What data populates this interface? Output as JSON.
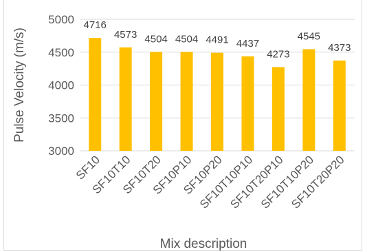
{
  "chart_data": {
    "type": "bar",
    "categories": [
      "SF10",
      "SF10T10",
      "SF10T20",
      "SF10P10",
      "SF10P20",
      "SF10T10P10",
      "SF10T20P10",
      "SF10T10P20",
      "SF10T20P20"
    ],
    "values": [
      4716,
      4573,
      4504,
      4504,
      4491,
      4437,
      4273,
      4545,
      4373
    ],
    "data_labels": [
      "4716",
      "4573",
      "4504",
      "4504",
      "4491",
      "4437",
      "4273",
      "4545",
      "4373"
    ],
    "xlabel": "Mix description",
    "ylabel": "Pulse Velocity (m/s)",
    "ylim": [
      3000,
      5000
    ],
    "yticks": [
      "3000",
      "3500",
      "4000",
      "4500",
      "5000"
    ],
    "grid": true,
    "legend": "none",
    "colors": {
      "bar": "#FFC000",
      "grid": "#d9d9d9",
      "text": "#595959"
    }
  }
}
